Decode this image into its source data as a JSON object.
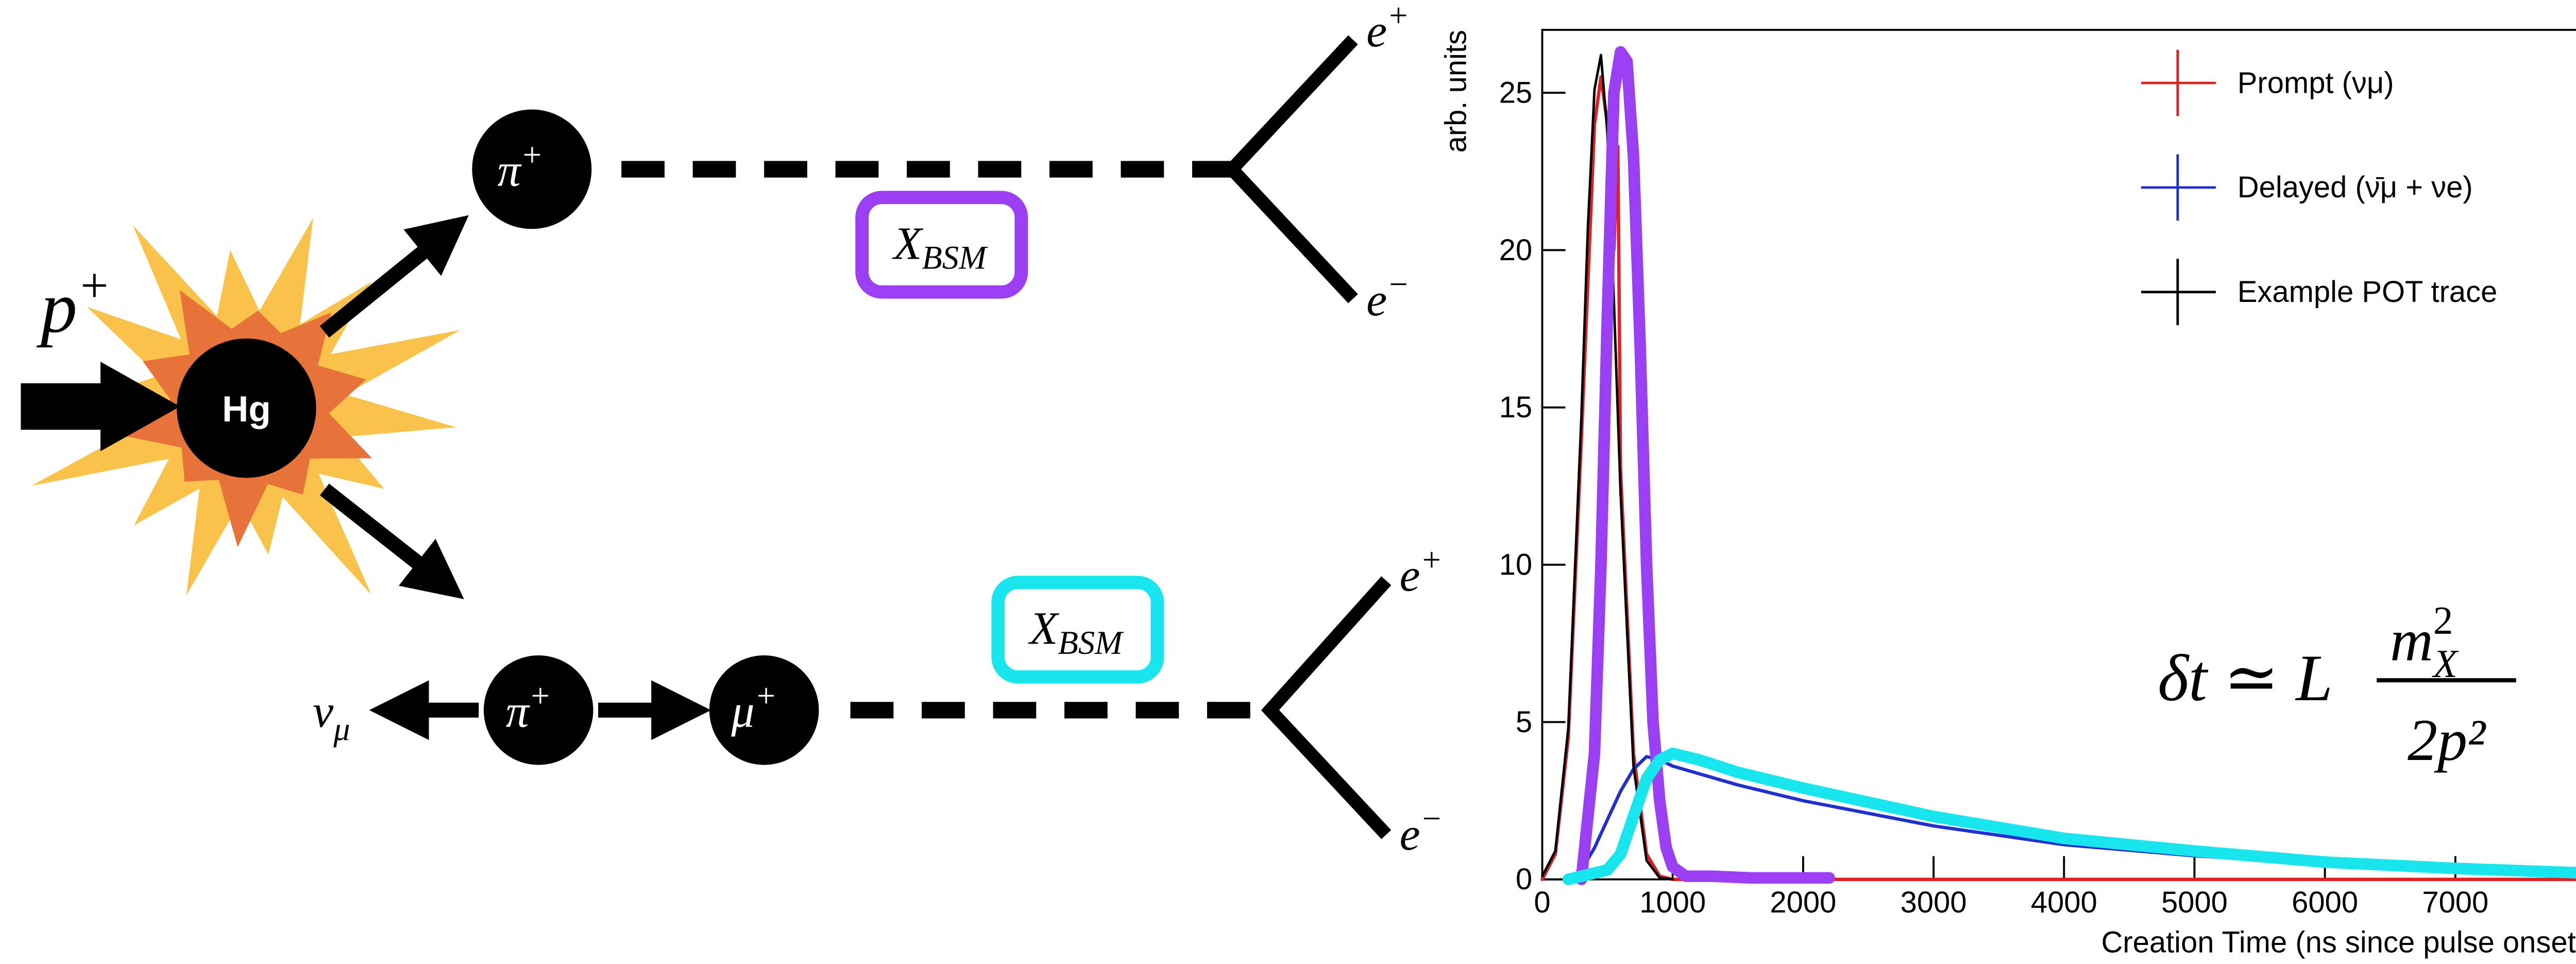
{
  "diagram": {
    "beam": {
      "base": "p",
      "sup": "+"
    },
    "target": "Hg",
    "upper_pion": {
      "base": "π",
      "sup": "+"
    },
    "upper_xbsm": {
      "base": "X",
      "sub": "BSM"
    },
    "upper_positron": {
      "base": "e",
      "sup": "+"
    },
    "upper_electron": {
      "base": "e",
      "sup": "−"
    },
    "neutrino": {
      "base": "ν",
      "sub": "μ"
    },
    "lower_pion": {
      "base": "π",
      "sup": "+"
    },
    "muon": {
      "base": "μ",
      "sup": "+"
    },
    "lower_xbsm": {
      "base": "X",
      "sub": "BSM"
    },
    "lower_positron": {
      "base": "e",
      "sup": "+"
    },
    "lower_electron": {
      "base": "e",
      "sup": "−"
    }
  },
  "chart_data": {
    "type": "line",
    "xlabel": "Creation Time (ns since pulse onset)",
    "ylabel": "arb. units",
    "xlim": [
      0,
      8000
    ],
    "ylim": [
      0,
      27
    ],
    "xticks": [
      0,
      1000,
      2000,
      3000,
      4000,
      5000,
      6000,
      7000
    ],
    "yticks": [
      0,
      5,
      10,
      15,
      20,
      25
    ],
    "legend": "upper right",
    "formula": {
      "lhs": "δt ≃ L",
      "numerator": "m",
      "numerator_sup": "2",
      "numerator_sub": "X",
      "denominator": "2p²"
    },
    "series": [
      {
        "name": "Prompt (νμ)",
        "color": "#e02020",
        "width": 2,
        "x": [
          0,
          100,
          200,
          300,
          400,
          450,
          500,
          550,
          580,
          600,
          700,
          800,
          900,
          1000,
          2000,
          8000
        ],
        "values": [
          0,
          0.8,
          4.5,
          14,
          24,
          25.5,
          24,
          20,
          23.3,
          13,
          4,
          0.8,
          0.1,
          0,
          0,
          0
        ]
      },
      {
        "name": "Delayed (ν̄μ + νe)",
        "color": "#2030d0",
        "width": 2,
        "x": [
          200,
          300,
          400,
          500,
          600,
          700,
          800,
          900,
          1000,
          1500,
          2000,
          3000,
          4000,
          5000,
          6000,
          7000,
          8000
        ],
        "values": [
          0,
          0.3,
          1.0,
          1.9,
          2.8,
          3.5,
          3.9,
          3.8,
          3.6,
          3.0,
          2.5,
          1.7,
          1.1,
          0.75,
          0.5,
          0.35,
          0.25
        ]
      },
      {
        "name": "Example POT trace",
        "color": "#000000",
        "width": 1.5,
        "x": [
          0,
          100,
          200,
          300,
          350,
          400,
          450,
          500,
          550,
          600,
          700,
          800,
          900,
          1000
        ],
        "values": [
          0.1,
          0.9,
          4.8,
          14.7,
          20.7,
          25.1,
          26.2,
          23.7,
          18.4,
          12.3,
          3.6,
          0.6,
          0.05,
          0
        ]
      },
      {
        "color": "#9b3ff5",
        "width": 7,
        "x": [
          300,
          400,
          450,
          500,
          550,
          600,
          650,
          700,
          750,
          800,
          850,
          900,
          950,
          1000,
          1100,
          1300,
          1600,
          2200
        ],
        "values": [
          0,
          4,
          10,
          18,
          25,
          26.3,
          26,
          23,
          17,
          10,
          5,
          2.5,
          1,
          0.4,
          0.1,
          0.1,
          0.05,
          0.05
        ]
      },
      {
        "color": "#17e6ef",
        "width": 7,
        "x": [
          200,
          300,
          500,
          600,
          700,
          800,
          900,
          1000,
          1200,
          1500,
          2000,
          3000,
          4000,
          5000,
          6000,
          7000,
          8000
        ],
        "values": [
          0,
          0.1,
          0.3,
          0.8,
          2,
          3.2,
          3.8,
          4.0,
          3.8,
          3.4,
          2.9,
          2.0,
          1.3,
          0.9,
          0.55,
          0.35,
          0.2
        ]
      }
    ]
  }
}
